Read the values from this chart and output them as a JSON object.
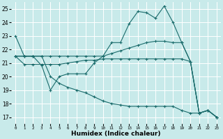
{
  "title": "",
  "xlabel": "Humidex (Indice chaleur)",
  "ylabel": "",
  "bg_color": "#c8eaea",
  "line_color": "#1a6b6b",
  "grid_color": "#ffffff",
  "x_ticks": [
    0,
    1,
    2,
    3,
    4,
    5,
    6,
    7,
    8,
    9,
    10,
    11,
    12,
    13,
    14,
    15,
    16,
    17,
    18,
    19,
    20,
    21,
    22,
    23
  ],
  "y_ticks": [
    17,
    18,
    19,
    20,
    21,
    22,
    23,
    24,
    25
  ],
  "ylim": [
    16.5,
    25.5
  ],
  "xlim": [
    -0.5,
    23.5
  ],
  "series": [
    {
      "x": [
        0,
        1,
        2,
        3,
        4,
        5,
        6,
        7,
        8,
        9,
        10,
        11,
        12,
        13,
        14,
        15,
        16,
        17,
        18,
        19,
        20,
        21,
        22,
        23
      ],
      "y": [
        23.0,
        21.5,
        21.5,
        20.8,
        19.0,
        20.0,
        20.2,
        20.2,
        20.2,
        21.0,
        21.5,
        22.5,
        22.5,
        23.9,
        24.8,
        24.7,
        24.3,
        25.2,
        24.0,
        22.5,
        21.1,
        17.3,
        17.5,
        17.0
      ]
    },
    {
      "x": [
        0,
        1,
        2,
        3,
        4,
        5,
        6,
        7,
        8,
        9,
        10,
        11,
        12,
        13,
        14,
        15,
        16,
        17,
        18,
        19,
        20,
        21,
        22,
        23
      ],
      "y": [
        21.5,
        21.5,
        21.5,
        21.5,
        21.5,
        21.5,
        21.5,
        21.5,
        21.5,
        21.5,
        21.5,
        21.7,
        21.9,
        22.1,
        22.3,
        22.5,
        22.6,
        22.6,
        22.5,
        22.5,
        21.1,
        17.3,
        17.5,
        17.0
      ]
    },
    {
      "x": [
        0,
        1,
        2,
        3,
        4,
        5,
        6,
        7,
        8,
        9,
        10,
        11,
        12,
        13,
        14,
        15,
        16,
        17,
        18,
        19,
        20,
        21,
        22,
        23
      ],
      "y": [
        21.5,
        20.9,
        20.9,
        20.9,
        20.9,
        20.9,
        21.0,
        21.1,
        21.2,
        21.2,
        21.3,
        21.3,
        21.3,
        21.3,
        21.3,
        21.3,
        21.3,
        21.3,
        21.3,
        21.3,
        21.1,
        17.3,
        17.5,
        17.0
      ]
    },
    {
      "x": [
        0,
        1,
        2,
        3,
        4,
        5,
        6,
        7,
        8,
        9,
        10,
        11,
        12,
        13,
        14,
        15,
        16,
        17,
        18,
        19,
        20,
        21,
        22,
        23
      ],
      "y": [
        21.5,
        21.5,
        21.5,
        21.5,
        20.0,
        19.5,
        19.2,
        19.0,
        18.8,
        18.5,
        18.2,
        18.0,
        17.9,
        17.8,
        17.8,
        17.8,
        17.8,
        17.8,
        17.8,
        17.5,
        17.3,
        17.3,
        17.5,
        17.0
      ]
    }
  ]
}
